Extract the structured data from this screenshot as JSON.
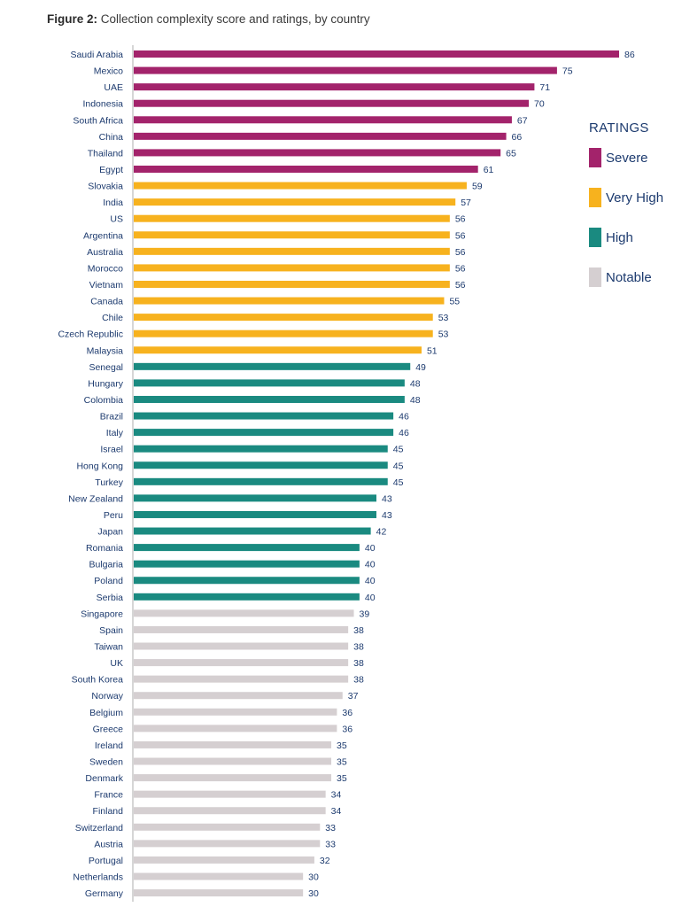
{
  "title_prefix": "Figure 2:",
  "title_text": "Collection complexity score and ratings, by country",
  "legend": {
    "title": "RATINGS",
    "items": [
      {
        "key": "severe",
        "label": "Severe",
        "color": "#a3236b"
      },
      {
        "key": "very_high",
        "label": "Very High",
        "color": "#f7b21e"
      },
      {
        "key": "high",
        "label": "High",
        "color": "#1a8a80"
      },
      {
        "key": "notable",
        "label": "Notable",
        "color": "#d5cfd1"
      }
    ]
  },
  "chart_data": {
    "type": "bar",
    "orientation": "horizontal",
    "title": "Figure 2: Collection complexity score and ratings, by country",
    "xlabel": "",
    "ylabel": "",
    "xlim": [
      0,
      86
    ],
    "grid": false,
    "legend_position": "right",
    "label_color": "#1c3a6e",
    "axis_color": "#c8c8c8",
    "categories": [
      "Saudi Arabia",
      "Mexico",
      "UAE",
      "Indonesia",
      "South Africa",
      "China",
      "Thailand",
      "Egypt",
      "Slovakia",
      "India",
      "US",
      "Argentina",
      "Australia",
      "Morocco",
      "Vietnam",
      "Canada",
      "Chile",
      "Czech Republic",
      "Malaysia",
      "Senegal",
      "Hungary",
      "Colombia",
      "Brazil",
      "Italy",
      "Israel",
      "Hong Kong",
      "Turkey",
      "New Zealand",
      "Peru",
      "Japan",
      "Romania",
      "Bulgaria",
      "Poland",
      "Serbia",
      "Singapore",
      "Spain",
      "Taiwan",
      "UK",
      "South Korea",
      "Norway",
      "Belgium",
      "Greece",
      "Ireland",
      "Sweden",
      "Denmark",
      "France",
      "Finland",
      "Switzerland",
      "Austria",
      "Portugal",
      "Netherlands",
      "Germany"
    ],
    "values": [
      86,
      75,
      71,
      70,
      67,
      66,
      65,
      61,
      59,
      57,
      56,
      56,
      56,
      56,
      56,
      55,
      53,
      53,
      51,
      49,
      48,
      48,
      46,
      46,
      45,
      45,
      45,
      43,
      43,
      42,
      40,
      40,
      40,
      40,
      39,
      38,
      38,
      38,
      38,
      37,
      36,
      36,
      35,
      35,
      35,
      34,
      34,
      33,
      33,
      32,
      30,
      30
    ],
    "ratings": [
      "severe",
      "severe",
      "severe",
      "severe",
      "severe",
      "severe",
      "severe",
      "severe",
      "very_high",
      "very_high",
      "very_high",
      "very_high",
      "very_high",
      "very_high",
      "very_high",
      "very_high",
      "very_high",
      "very_high",
      "very_high",
      "high",
      "high",
      "high",
      "high",
      "high",
      "high",
      "high",
      "high",
      "high",
      "high",
      "high",
      "high",
      "high",
      "high",
      "high",
      "notable",
      "notable",
      "notable",
      "notable",
      "notable",
      "notable",
      "notable",
      "notable",
      "notable",
      "notable",
      "notable",
      "notable",
      "notable",
      "notable",
      "notable",
      "notable",
      "notable",
      "notable"
    ]
  }
}
